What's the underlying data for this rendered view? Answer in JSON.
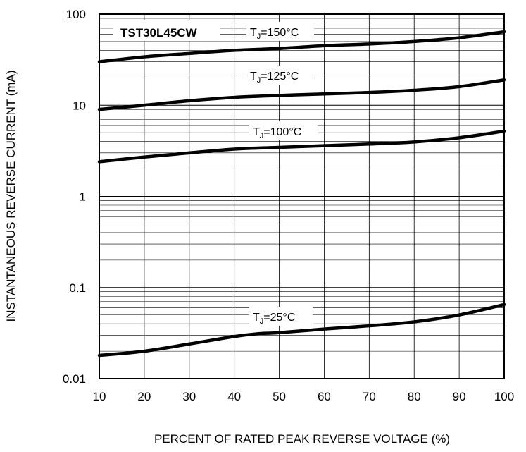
{
  "chart_data": {
    "type": "line",
    "title": "TST30L45CW",
    "xlabel": "PERCENT OF RATED PEAK REVERSE VOLTAGE (%)",
    "ylabel": "INSTANTANEOUS REVERSE CURRENT (mA)",
    "xlim": [
      10,
      100
    ],
    "ylim": [
      0.01,
      100
    ],
    "yscale": "log",
    "grid": true,
    "x_ticks": [
      "10",
      "20",
      "30",
      "40",
      "50",
      "60",
      "70",
      "80",
      "90",
      "100"
    ],
    "y_ticks": [
      "0.01",
      "0.1",
      "1",
      "10",
      "100"
    ],
    "x_tick_values": [
      10,
      20,
      30,
      40,
      50,
      60,
      70,
      80,
      90,
      100
    ],
    "y_tick_values": [
      0.01,
      0.1,
      1,
      10,
      100
    ],
    "series": [
      {
        "name": "TJ=150°C",
        "label_main": "T",
        "label_sub": "J",
        "label_rest": "=150°C",
        "x": [
          10,
          20,
          30,
          40,
          50,
          60,
          70,
          80,
          90,
          100
        ],
        "y": [
          30,
          34,
          37,
          40,
          42,
          45,
          47,
          50,
          55,
          64
        ]
      },
      {
        "name": "TJ=125°C",
        "label_main": "T",
        "label_sub": "J",
        "label_rest": "=125°C",
        "x": [
          10,
          20,
          30,
          40,
          50,
          60,
          70,
          80,
          90,
          100
        ],
        "y": [
          9,
          10,
          11.2,
          12.2,
          12.8,
          13.3,
          13.8,
          14.6,
          16,
          19
        ]
      },
      {
        "name": "TJ=100°C",
        "label_main": "T",
        "label_sub": "J",
        "label_rest": "=100°C",
        "x": [
          10,
          20,
          30,
          40,
          50,
          60,
          70,
          80,
          90,
          100
        ],
        "y": [
          2.4,
          2.7,
          3.0,
          3.3,
          3.45,
          3.6,
          3.75,
          3.95,
          4.4,
          5.2
        ]
      },
      {
        "name": "TJ=25°C",
        "label_main": "T",
        "label_sub": "J",
        "label_rest": "=25°C",
        "x": [
          10,
          20,
          30,
          40,
          45,
          50,
          60,
          70,
          80,
          90,
          100
        ],
        "y": [
          0.018,
          0.02,
          0.024,
          0.029,
          0.031,
          0.032,
          0.035,
          0.038,
          0.042,
          0.05,
          0.065
        ]
      }
    ],
    "colors": {
      "line": "#000000",
      "grid": "#000000",
      "background": "#ffffff"
    }
  }
}
